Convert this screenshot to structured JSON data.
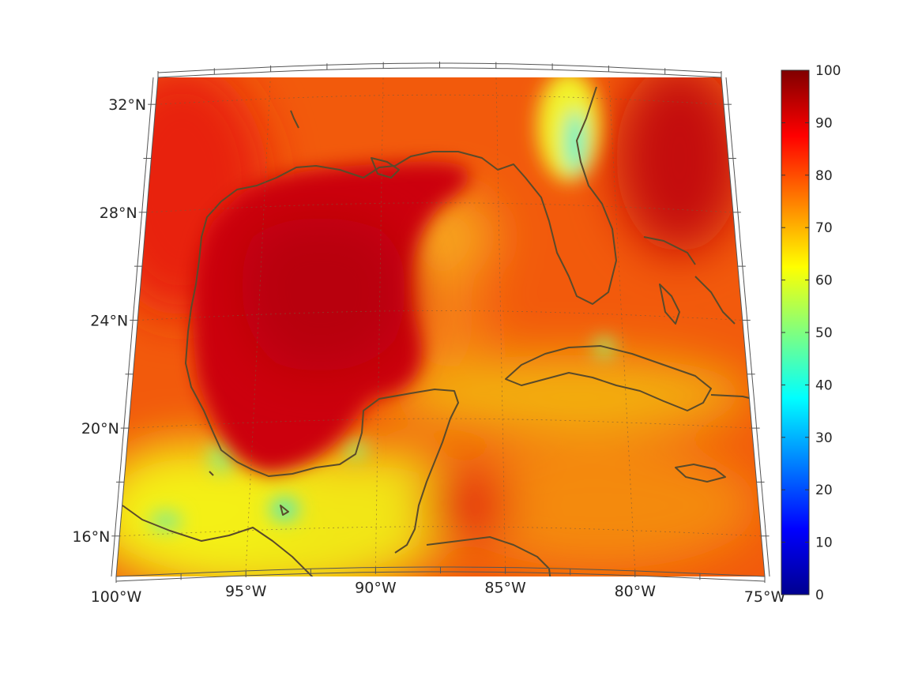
{
  "map": {
    "projection": "conic",
    "lon_range": [
      -100,
      -75
    ],
    "lat_range": [
      14.5,
      33
    ],
    "grid": true,
    "coastline_color": "#5a4a2a",
    "longitude_labels": [
      {
        "lon": -100,
        "text": "100°W"
      },
      {
        "lon": -95,
        "text": "95°W"
      },
      {
        "lon": -90,
        "text": "90°W"
      },
      {
        "lon": -85,
        "text": "85°W"
      },
      {
        "lon": -80,
        "text": "80°W"
      },
      {
        "lon": -75,
        "text": "75°W"
      }
    ],
    "latitude_labels": [
      {
        "lat": 32,
        "text": "32°N"
      },
      {
        "lat": 28,
        "text": "28°N"
      },
      {
        "lat": 24,
        "text": "24°N"
      },
      {
        "lat": 20,
        "text": "20°N"
      },
      {
        "lat": 16,
        "text": "16°N"
      }
    ]
  },
  "colorbar": {
    "colormap": "jet",
    "range": [
      0,
      100
    ],
    "ticks": [
      "0",
      "10",
      "20",
      "30",
      "40",
      "50",
      "60",
      "70",
      "80",
      "90",
      "100"
    ]
  }
}
